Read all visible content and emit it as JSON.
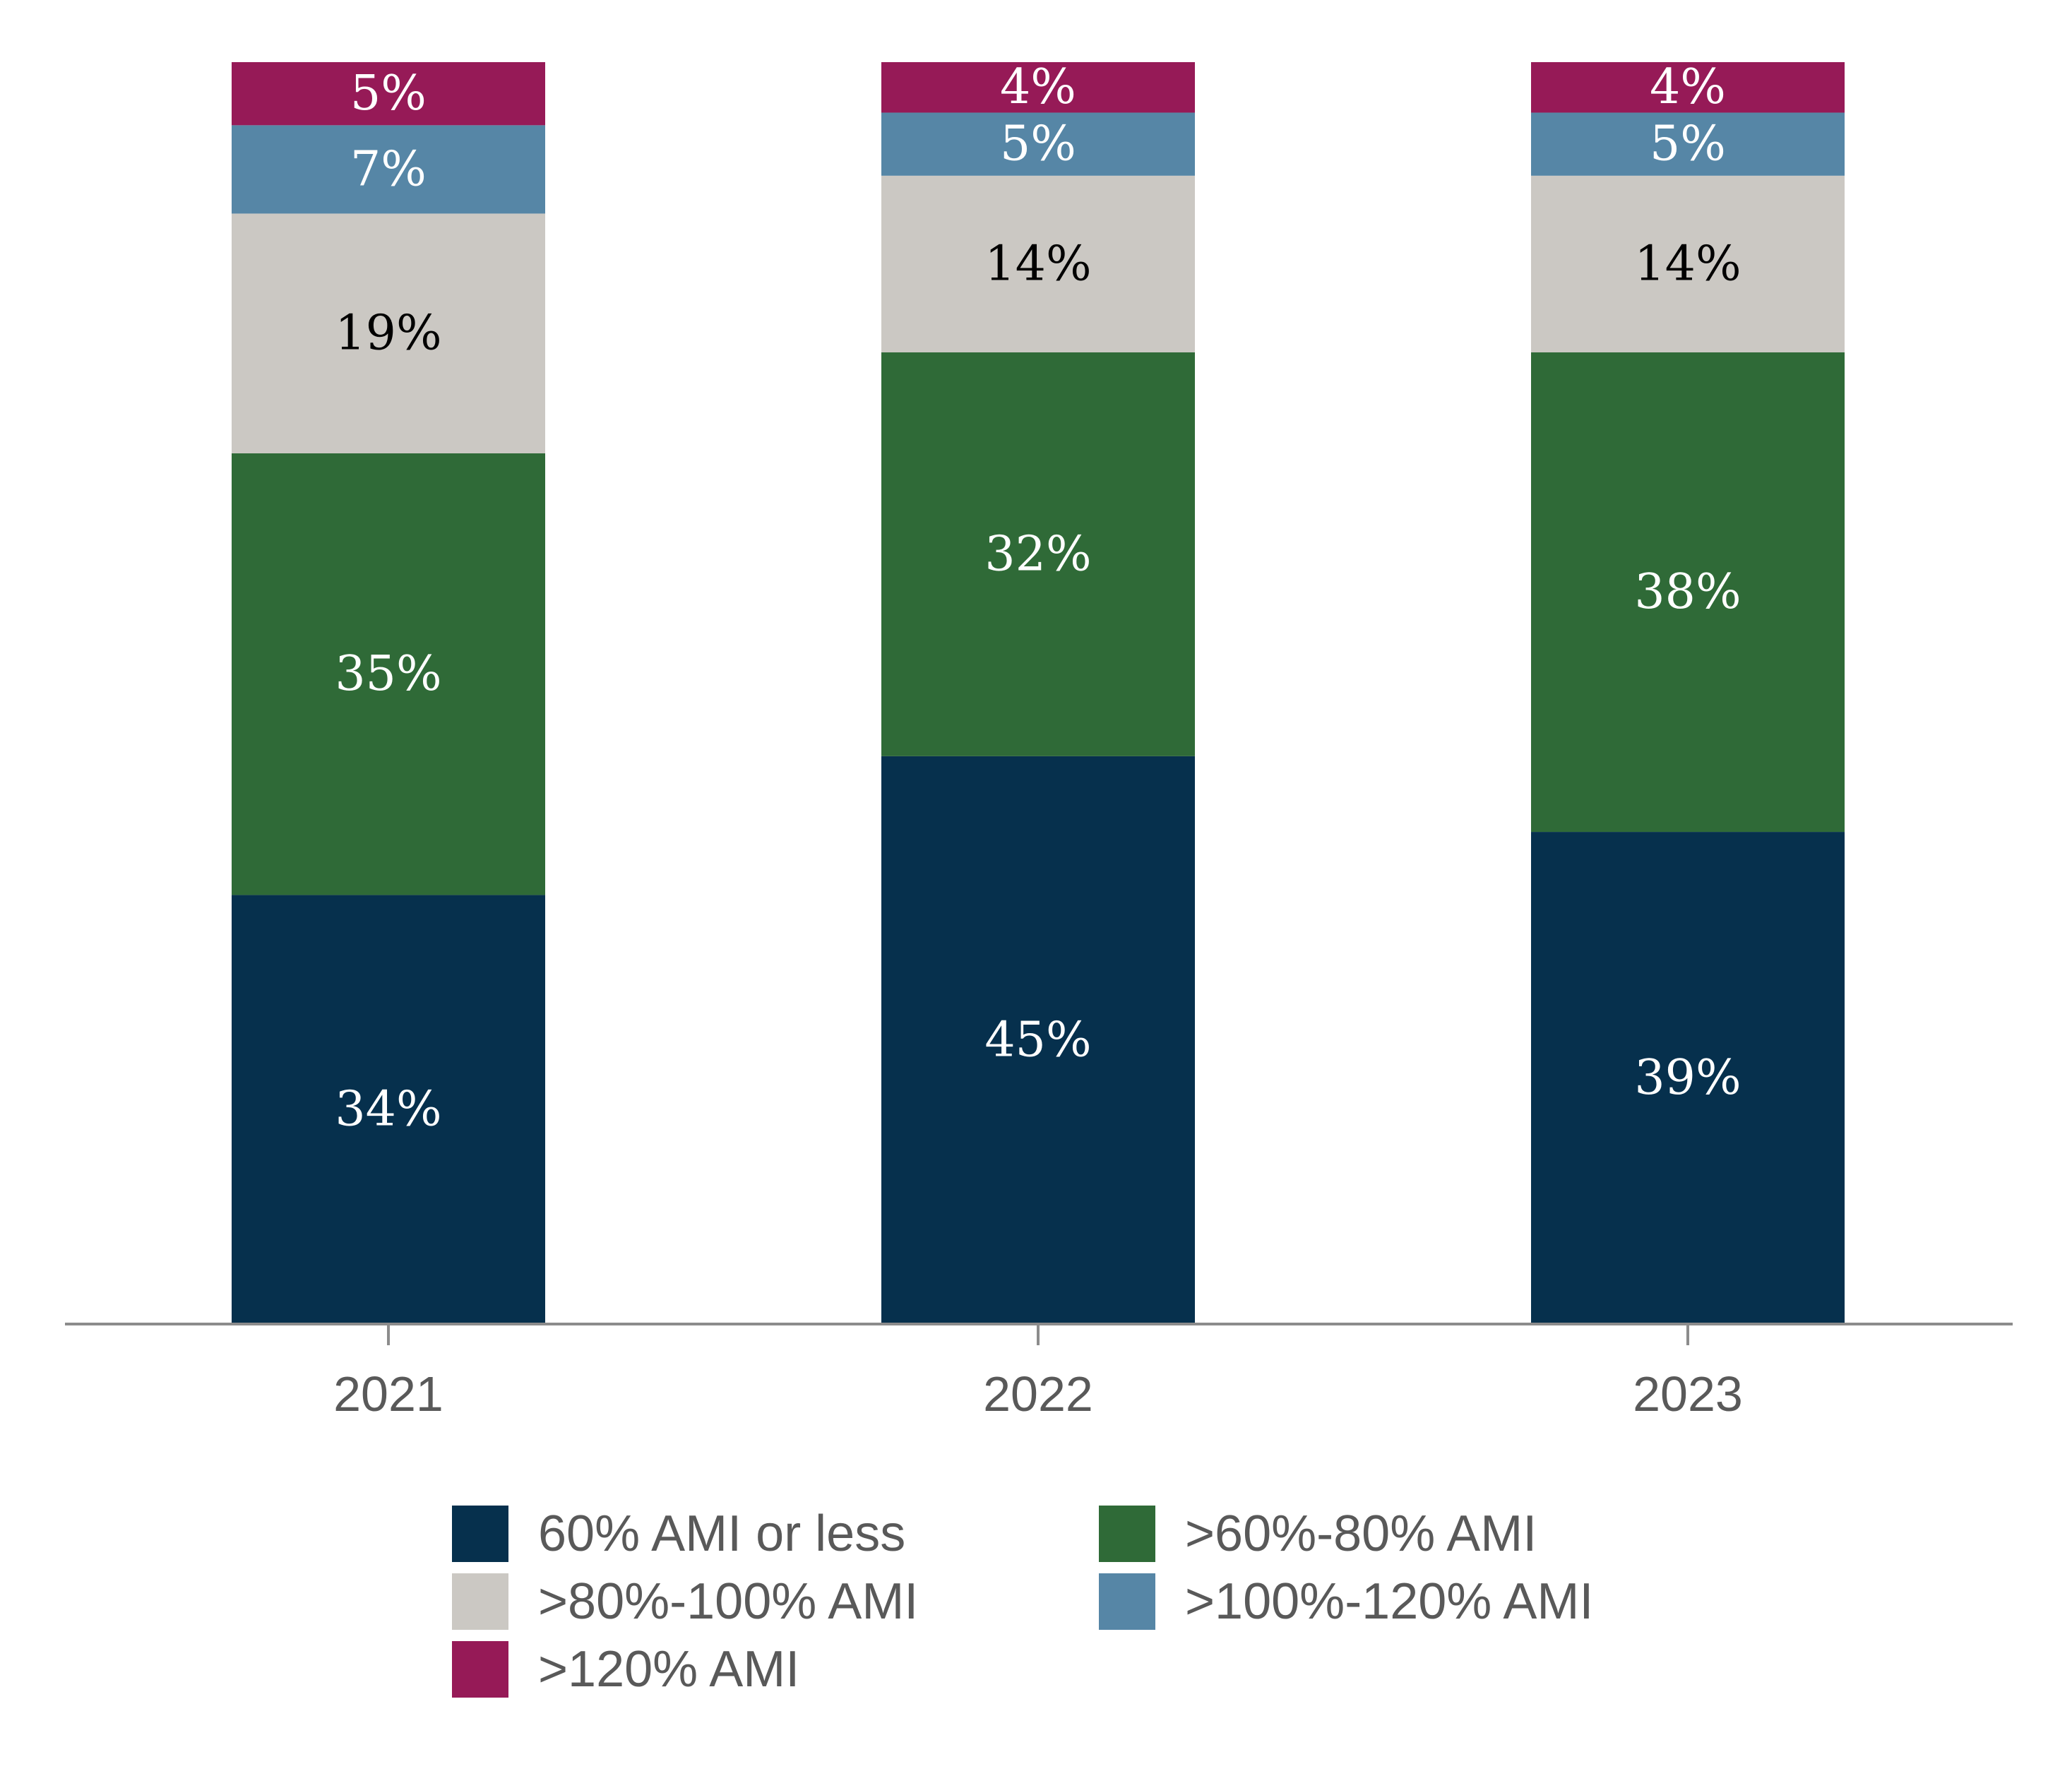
{
  "chart_data": {
    "type": "bar",
    "stacked": true,
    "categories": [
      "2021",
      "2022",
      "2023"
    ],
    "series": [
      {
        "name": "60% AMI or less",
        "color": "#06304d",
        "label_color": "#ffffff",
        "values": [
          34,
          45,
          39
        ],
        "labels": [
          "34%",
          "45%",
          "39%"
        ]
      },
      {
        "name": ">60%-80% AMI",
        "color": "#2f6a37",
        "label_color": "#ffffff",
        "values": [
          35,
          32,
          38
        ],
        "labels": [
          "35%",
          "32%",
          "38%"
        ]
      },
      {
        "name": ">80%-100% AMI",
        "color": "#cbc8c3",
        "label_color": "#000000",
        "values": [
          19,
          14,
          14
        ],
        "labels": [
          "19%",
          "14%",
          "14%"
        ]
      },
      {
        "name": ">100%-120% AMI",
        "color": "#5686a6",
        "label_color": "#ffffff",
        "values": [
          7,
          5,
          5
        ],
        "labels": [
          "7%",
          "5%",
          "5%"
        ]
      },
      {
        "name": ">120% AMI",
        "color": "#961a57",
        "label_color": "#ffffff",
        "values": [
          5,
          4,
          4
        ],
        "labels": [
          "5%",
          "4%",
          "4%"
        ]
      }
    ],
    "ylim": [
      0,
      100
    ],
    "grid": false,
    "legend_position": "bottom",
    "axis_color": "#8c8c8c"
  }
}
